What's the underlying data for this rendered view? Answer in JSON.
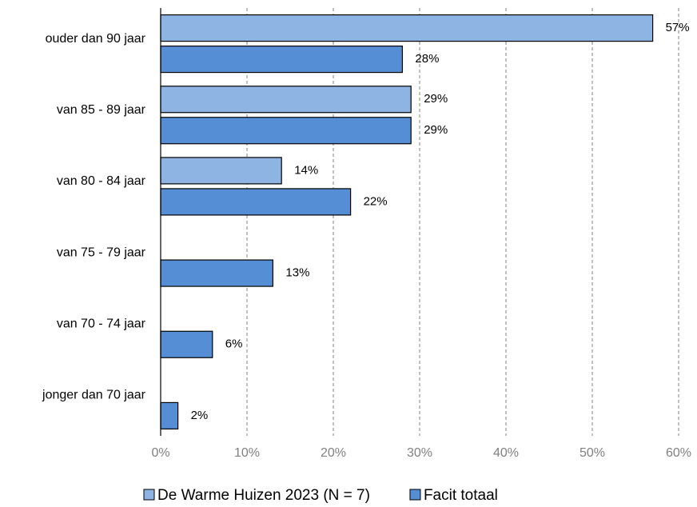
{
  "chart_data": {
    "type": "hbar",
    "categories": [
      "ouder dan 90 jaar",
      "van 85 - 89 jaar",
      "van 80 - 84 jaar",
      "van 75 - 79 jaar",
      "van 70 - 74 jaar",
      "jonger dan 70 jaar"
    ],
    "series": [
      {
        "name": "De Warme Huizen 2023 (N = 7)",
        "color": "#8eb4e3",
        "values": [
          57,
          29,
          14,
          null,
          null,
          null
        ],
        "value_labels": [
          "57%",
          "29%",
          "14%",
          null,
          null,
          null
        ]
      },
      {
        "name": "Facit totaal",
        "color": "#558ed5",
        "values": [
          28,
          29,
          22,
          13,
          6,
          2
        ],
        "value_labels": [
          "28%",
          "29%",
          "22%",
          "13%",
          "6%",
          "2%"
        ]
      }
    ],
    "xlim": [
      0,
      60
    ],
    "xticks": [
      {
        "value": 0,
        "label": "0%"
      },
      {
        "value": 10,
        "label": "10%"
      },
      {
        "value": 20,
        "label": "20%"
      },
      {
        "value": 30,
        "label": "30%"
      },
      {
        "value": 40,
        "label": "40%"
      },
      {
        "value": 50,
        "label": "50%"
      },
      {
        "value": 60,
        "label": "60%"
      }
    ],
    "grid": true,
    "legend": "bottom"
  }
}
